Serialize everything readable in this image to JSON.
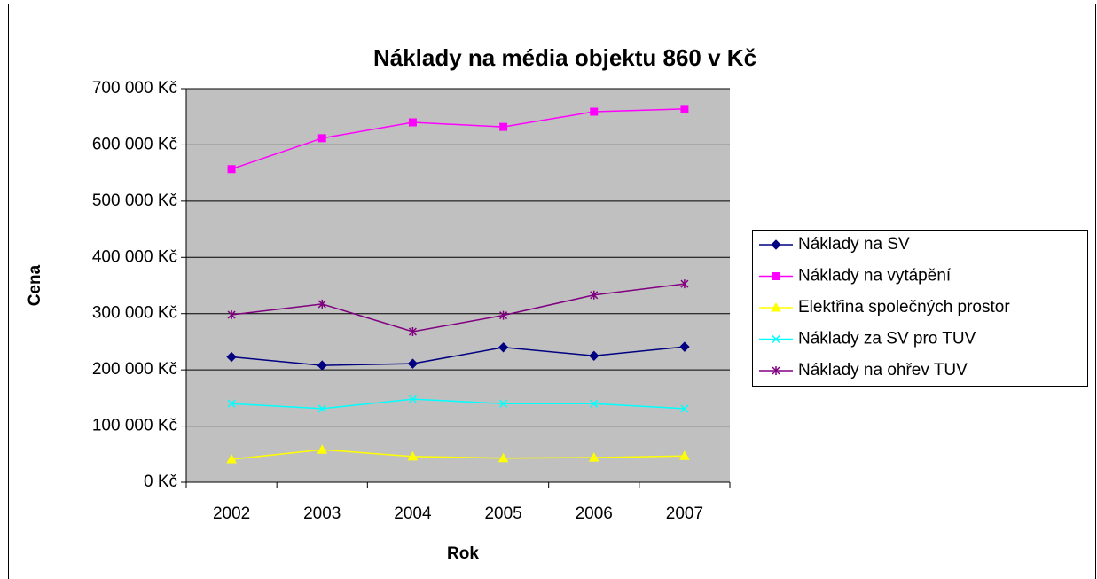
{
  "chart_data": {
    "type": "line",
    "title": "Náklady na média objektu 860 v Kč",
    "x_label": "Rok",
    "y_label": "Cena",
    "categories": [
      "2002",
      "2003",
      "2004",
      "2005",
      "2006",
      "2007"
    ],
    "ylim": [
      0,
      700000
    ],
    "yticks": [
      {
        "value": 0,
        "label": "0 Kč"
      },
      {
        "value": 100000,
        "label": "100 000 Kč"
      },
      {
        "value": 200000,
        "label": "200 000 Kč"
      },
      {
        "value": 300000,
        "label": "300 000 Kč"
      },
      {
        "value": 400000,
        "label": "400 000 Kč"
      },
      {
        "value": 500000,
        "label": "500 000 Kč"
      },
      {
        "value": 600000,
        "label": "600 000 Kč"
      },
      {
        "value": 700000,
        "label": "700 000 Kč"
      }
    ],
    "grid": true,
    "legend": "right",
    "series": [
      {
        "name": "Náklady na SV",
        "color": "#000080",
        "marker": "diamond",
        "values": [
          223000,
          208000,
          211000,
          240000,
          225000,
          241000
        ]
      },
      {
        "name": "Náklady na vytápění",
        "color": "#ff00ff",
        "marker": "square",
        "values": [
          557000,
          612000,
          640000,
          632000,
          659000,
          664000
        ]
      },
      {
        "name": "Elektřina společných prostor",
        "color": "#ffff00",
        "marker": "triangle",
        "values": [
          41000,
          58000,
          46000,
          43000,
          44000,
          47000
        ]
      },
      {
        "name": "Náklady za SV pro TUV",
        "color": "#00ffff",
        "marker": "x",
        "values": [
          140000,
          131000,
          148000,
          140000,
          140000,
          131000
        ]
      },
      {
        "name": "Náklady na ohřev TUV",
        "color": "#800080",
        "marker": "star",
        "values": [
          298000,
          317000,
          268000,
          297000,
          333000,
          353000
        ]
      }
    ]
  }
}
